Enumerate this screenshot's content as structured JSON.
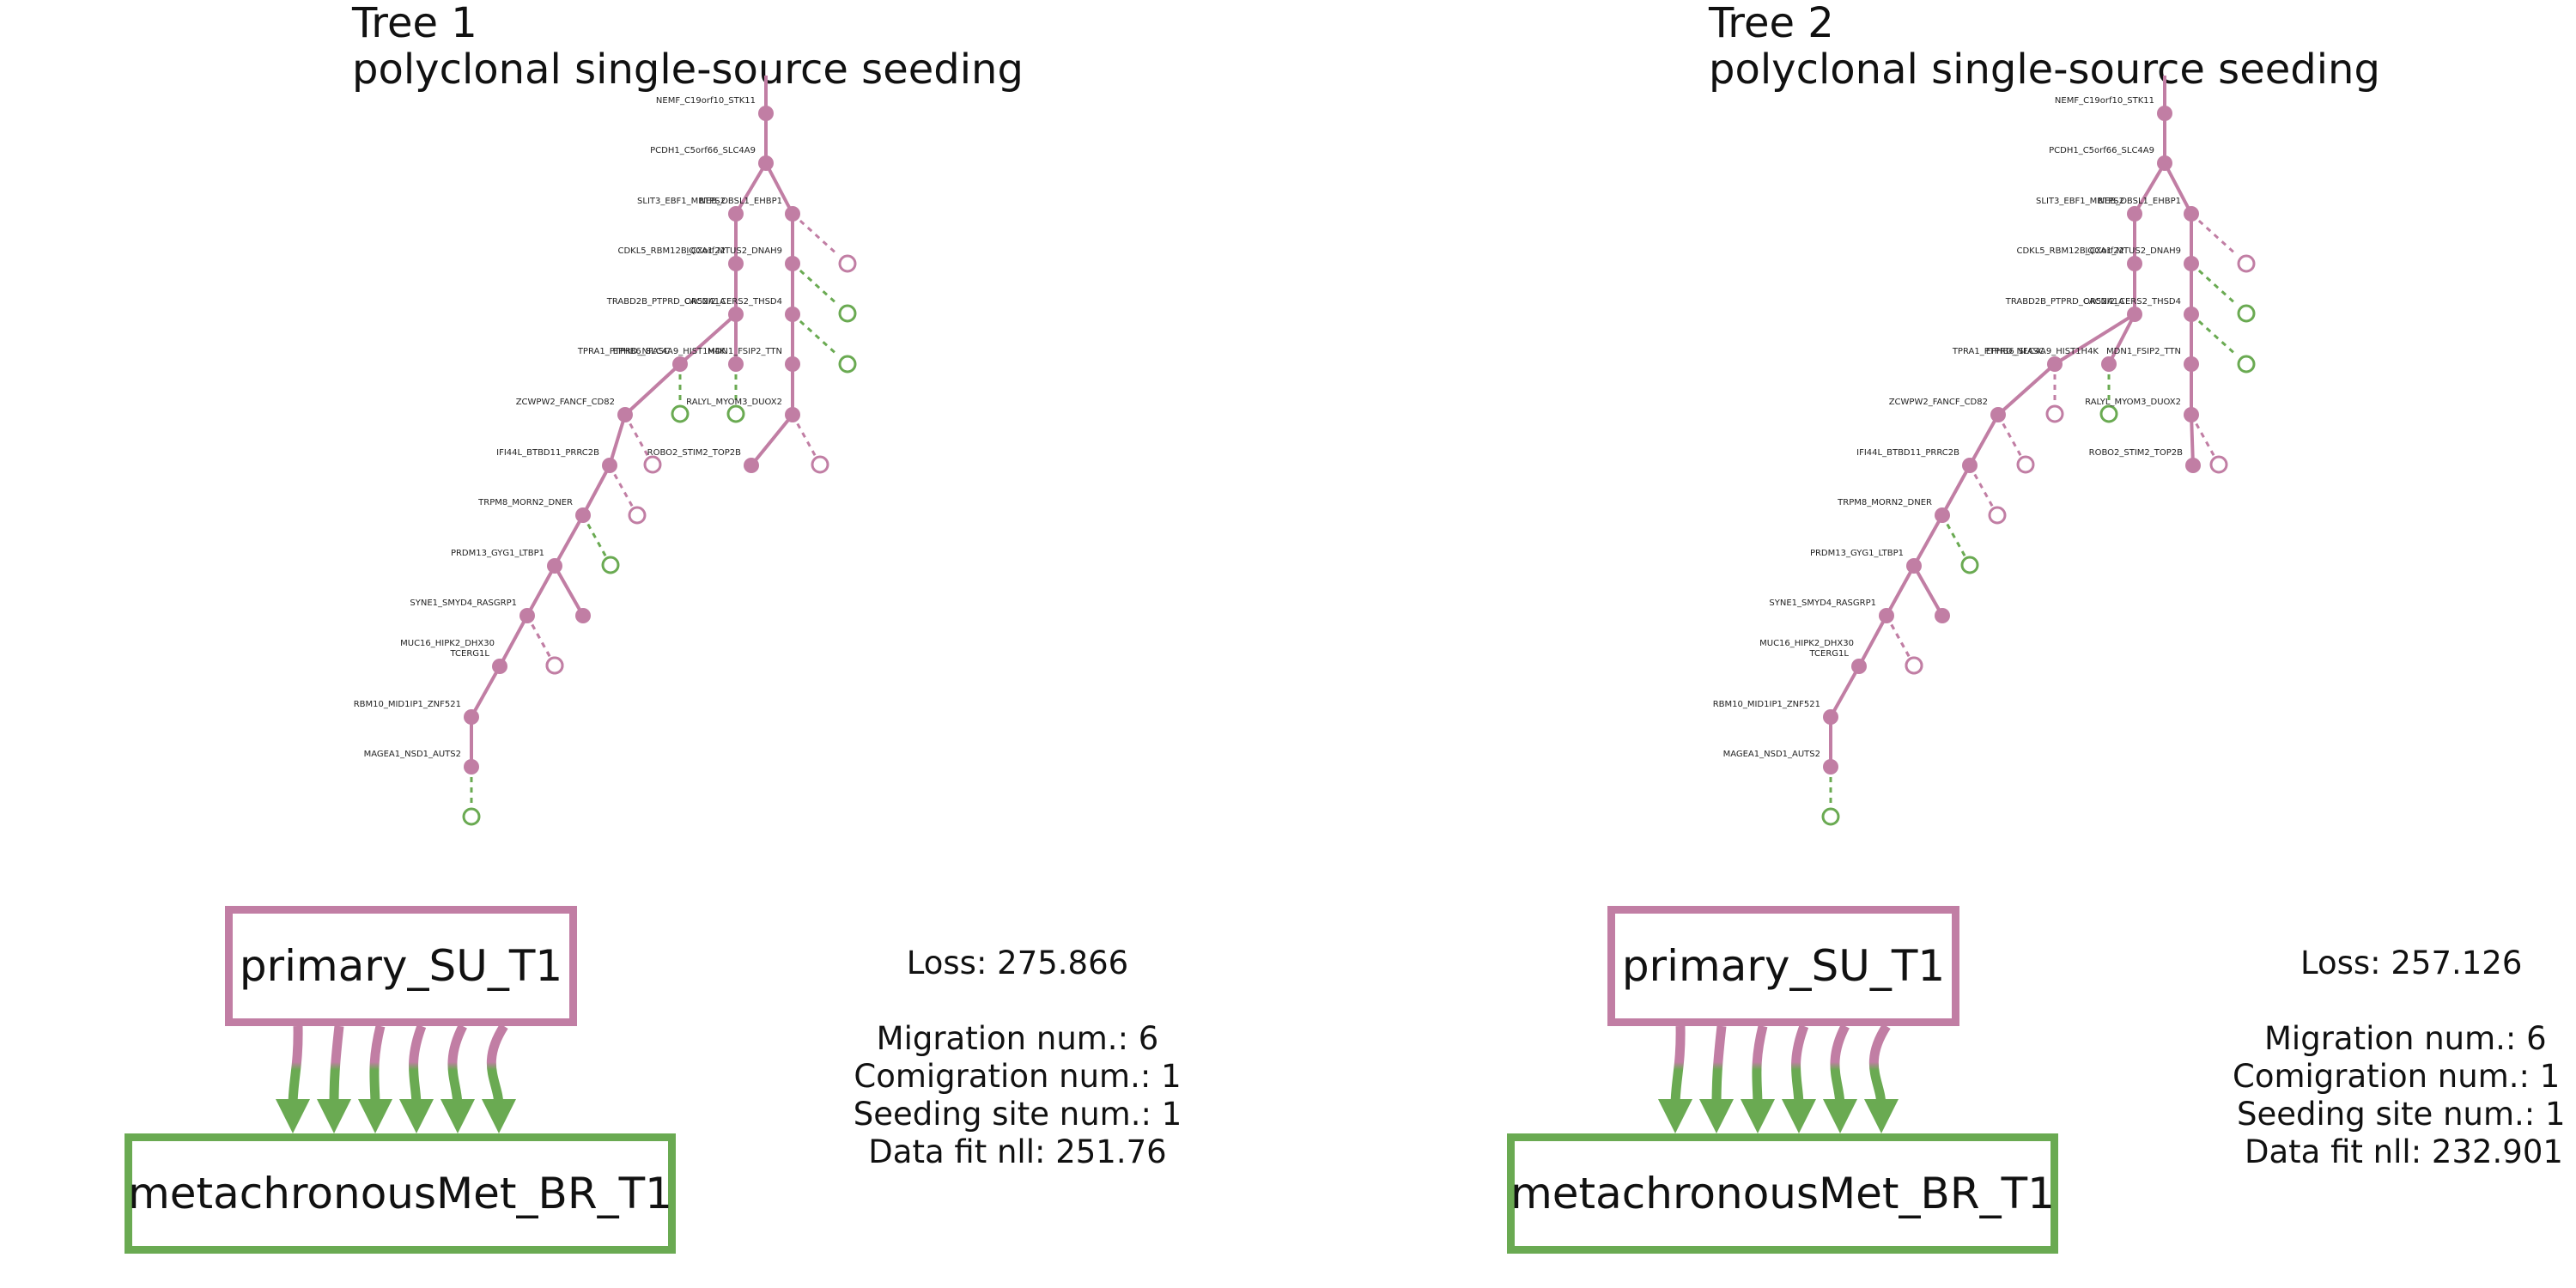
{
  "colors": {
    "primary": "#c17ea4",
    "met": "#6aaa52",
    "text": "#111111"
  },
  "panels": [
    {
      "title": "Tree 1",
      "subtitle": "polyclonal single-source seeding",
      "primary_site": "primary_SU_T1",
      "met_site": "metachronousMet_BR_T1",
      "migration_arrows": 6,
      "stats": {
        "loss": "Loss: 275.866",
        "migration": "Migration num.: 6",
        "comigration": "Comigration num.: 1",
        "seeding": "Seeding site num.: 1",
        "datafit": "Data fit nll: 251.76"
      },
      "tree": {
        "nodes": [
          {
            "id": "n0",
            "label": "NEMF_C19orf10_STK11"
          },
          {
            "id": "n1",
            "label": "PCDH1_C5orf66_SLC4A9"
          },
          {
            "id": "n2",
            "label": "SLIT3_EBF1_MBTPS2"
          },
          {
            "id": "n3",
            "label": "NEB_OBSL1_EHBP1"
          },
          {
            "id": "n4",
            "label": "CDKL5_RBM12B_CXorf22"
          },
          {
            "id": "n5",
            "label": "IQCA1_MTUS2_DNAH9"
          },
          {
            "id": "n6",
            "label": "TRABD2B_PTPRD_CACNA1A"
          },
          {
            "id": "n7",
            "label": "OR52I2_CERS2_THSD4"
          },
          {
            "id": "n8",
            "label": "TPRA1_PTPRD_NFASC"
          },
          {
            "id": "n9",
            "label": "MDN1_FSIP2_TTN"
          },
          {
            "id": "n10",
            "label": "EPHB6_SLC4A9_HIST1H4K"
          },
          {
            "id": "n11",
            "label": "ZCWPW2_FANCF_CD82"
          },
          {
            "id": "n12",
            "label": "RALYL_MYOM3_DUOX2"
          },
          {
            "id": "n13",
            "label": "IFI44L_BTBD11_PRRC2B"
          },
          {
            "id": "n14",
            "label": "ROBO2_STIM2_TOP2B"
          },
          {
            "id": "n15",
            "label": "TRPM8_MORN2_DNER"
          },
          {
            "id": "n16",
            "label": "PRDM13_GYG1_LTBP1"
          },
          {
            "id": "n17",
            "label": "SYNE1_SMYD4_RASGRP1"
          },
          {
            "id": "n18",
            "label": "MUC16_HIPK2_DHX30"
          },
          {
            "id": "n19",
            "label": "TCERG1L"
          },
          {
            "id": "n20",
            "label": "RBM10_MID1IP1_ZNF521"
          },
          {
            "id": "n21",
            "label": "MAGEA1_NSD1_AUTS2"
          },
          {
            "id": "n22",
            "label": ""
          }
        ],
        "edges": [
          [
            "n0",
            "n1"
          ],
          [
            "n1",
            "n2"
          ],
          [
            "n1",
            "n3"
          ],
          [
            "n2",
            "n4"
          ],
          [
            "n3",
            "n5"
          ],
          [
            "n4",
            "n6"
          ],
          [
            "n5",
            "n7"
          ],
          [
            "n6",
            "n8"
          ],
          [
            "n6",
            "n10"
          ],
          [
            "n7",
            "n9"
          ],
          [
            "n8",
            "n11"
          ],
          [
            "n9",
            "n12"
          ],
          [
            "n11",
            "n13"
          ],
          [
            "n12",
            "n14"
          ],
          [
            "n13",
            "n15"
          ],
          [
            "n15",
            "n16"
          ],
          [
            "n16",
            "n17"
          ],
          [
            "n16",
            "n22"
          ],
          [
            "n17",
            "n18"
          ],
          [
            "n18",
            "n19"
          ],
          [
            "n19",
            "n20"
          ],
          [
            "n20",
            "n21"
          ]
        ],
        "leaves": [
          {
            "parent": "n3",
            "site": "primary"
          },
          {
            "parent": "n5",
            "site": "met"
          },
          {
            "parent": "n7",
            "site": "met"
          },
          {
            "parent": "n8",
            "site": "met"
          },
          {
            "parent": "n10",
            "site": "met"
          },
          {
            "parent": "n11",
            "site": "primary"
          },
          {
            "parent": "n12",
            "site": "primary"
          },
          {
            "parent": "n13",
            "site": "primary"
          },
          {
            "parent": "n15",
            "site": "met"
          },
          {
            "parent": "n17",
            "site": "primary"
          },
          {
            "parent": "n18",
            "site": "primary"
          },
          {
            "parent": "n21",
            "site": "met"
          }
        ]
      }
    },
    {
      "title": "Tree 2",
      "subtitle": "polyclonal single-source seeding",
      "primary_site": "primary_SU_T1",
      "met_site": "metachronousMet_BR_T1",
      "migration_arrows": 6,
      "stats": {
        "loss": "Loss: 257.126",
        "migration": "Migration num.: 6",
        "comigration": "Comigration num.: 1",
        "seeding": "Seeding site num.: 1",
        "datafit": "Data fit nll: 232.901"
      },
      "tree": {
        "nodes": [
          {
            "id": "n0",
            "label": "NEMF_C19orf10_STK11"
          },
          {
            "id": "n1",
            "label": "PCDH1_C5orf66_SLC4A9"
          },
          {
            "id": "n2",
            "label": "SLIT3_EBF1_MBTPS2"
          },
          {
            "id": "n3",
            "label": "NEB_OBSL1_EHBP1"
          },
          {
            "id": "n4",
            "label": "CDKL5_RBM12B_CXorf22"
          },
          {
            "id": "n5",
            "label": "IQCA1_MTUS2_DNAH9"
          },
          {
            "id": "n6",
            "label": "TRABD2B_PTPRD_CACNA1A"
          },
          {
            "id": "n7",
            "label": "OR52I2_CERS2_THSD4"
          },
          {
            "id": "n8",
            "label": "TPRA1_PTPRD_NFASC"
          },
          {
            "id": "n9",
            "label": "MDN1_FSIP2_TTN"
          },
          {
            "id": "n10",
            "label": "EPHB6_SLC4A9_HIST1H4K"
          },
          {
            "id": "n11",
            "label": "ZCWPW2_FANCF_CD82"
          },
          {
            "id": "n12",
            "label": "RALYL_MYOM3_DUOX2"
          },
          {
            "id": "n13",
            "label": "IFI44L_BTBD11_PRRC2B"
          },
          {
            "id": "n14",
            "label": "ROBO2_STIM2_TOP2B"
          },
          {
            "id": "n15",
            "label": "TRPM8_MORN2_DNER"
          },
          {
            "id": "n16",
            "label": "PRDM13_GYG1_LTBP1"
          },
          {
            "id": "n17",
            "label": "SYNE1_SMYD4_RASGRP1"
          },
          {
            "id": "n18",
            "label": "MUC16_HIPK2_DHX30"
          },
          {
            "id": "n19",
            "label": "TCERG1L"
          },
          {
            "id": "n20",
            "label": "RBM10_MID1IP1_ZNF521"
          },
          {
            "id": "n21",
            "label": "MAGEA1_NSD1_AUTS2"
          },
          {
            "id": "n22",
            "label": ""
          }
        ],
        "edges": [
          [
            "n0",
            "n1"
          ],
          [
            "n1",
            "n2"
          ],
          [
            "n1",
            "n3"
          ],
          [
            "n2",
            "n4"
          ],
          [
            "n3",
            "n5"
          ],
          [
            "n4",
            "n6"
          ],
          [
            "n5",
            "n7"
          ],
          [
            "n6",
            "n8"
          ],
          [
            "n6",
            "n10"
          ],
          [
            "n7",
            "n9"
          ],
          [
            "n8",
            "n11"
          ],
          [
            "n9",
            "n12"
          ],
          [
            "n11",
            "n13"
          ],
          [
            "n12",
            "n14"
          ],
          [
            "n13",
            "n15"
          ],
          [
            "n15",
            "n16"
          ],
          [
            "n16",
            "n17"
          ],
          [
            "n16",
            "n22"
          ],
          [
            "n17",
            "n18"
          ],
          [
            "n18",
            "n19"
          ],
          [
            "n19",
            "n20"
          ],
          [
            "n20",
            "n21"
          ]
        ],
        "leaves": [
          {
            "parent": "n3",
            "site": "primary"
          },
          {
            "parent": "n5",
            "site": "met"
          },
          {
            "parent": "n7",
            "site": "met"
          },
          {
            "parent": "n8",
            "site": "primary"
          },
          {
            "parent": "n10",
            "site": "met"
          },
          {
            "parent": "n11",
            "site": "primary"
          },
          {
            "parent": "n12",
            "site": "primary"
          },
          {
            "parent": "n13",
            "site": "primary"
          },
          {
            "parent": "n15",
            "site": "met"
          },
          {
            "parent": "n17",
            "site": "primary"
          },
          {
            "parent": "n18",
            "site": "primary"
          },
          {
            "parent": "n21",
            "site": "met"
          }
        ]
      }
    }
  ]
}
